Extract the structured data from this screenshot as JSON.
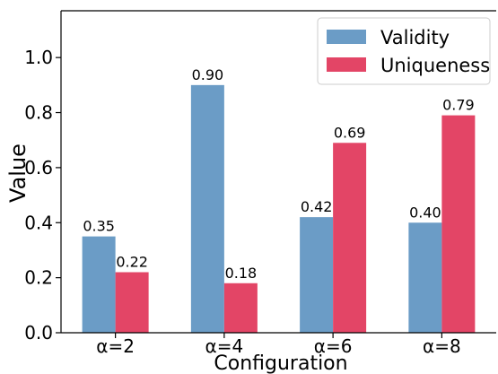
{
  "chart_data": {
    "type": "bar",
    "categories": [
      "α=2",
      "α=4",
      "α=6",
      "α=8"
    ],
    "series": [
      {
        "name": "Validity",
        "values": [
          0.35,
          0.9,
          0.42,
          0.4
        ],
        "color": "#6b9cc6"
      },
      {
        "name": "Uniqueness",
        "values": [
          0.22,
          0.18,
          0.69,
          0.79
        ],
        "color": "#e34566"
      }
    ],
    "data_labels": [
      [
        "0.35",
        "0.90",
        "0.42",
        "0.40"
      ],
      [
        "0.22",
        "0.18",
        "0.69",
        "0.79"
      ]
    ],
    "xlabel": "Configuration",
    "ylabel": "Value",
    "ylim": [
      0,
      1.17
    ],
    "yticks": [
      0.0,
      0.2,
      0.4,
      0.6,
      0.8,
      1.0
    ],
    "ytick_labels": [
      "0.0",
      "0.2",
      "0.4",
      "0.6",
      "0.8",
      "1.0"
    ],
    "grid": false,
    "legend_position": "top-right"
  }
}
